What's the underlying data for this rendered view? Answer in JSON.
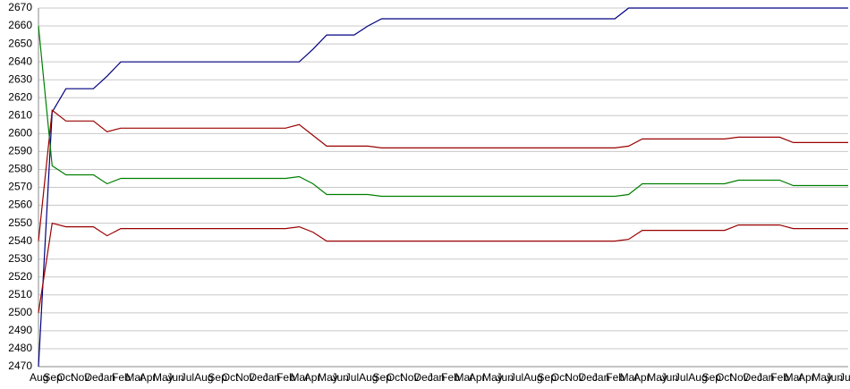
{
  "chart_data": {
    "type": "line",
    "categories": [
      "Aug",
      "Sep",
      "Oct",
      "Nov",
      "Dec",
      "Jan",
      "Feb",
      "Mar",
      "Apr",
      "May",
      "Jun",
      "Jul",
      "Aug",
      "Sep",
      "Oct",
      "Nov",
      "Dec",
      "Jan",
      "Feb",
      "Mar",
      "Apr",
      "May",
      "Jun",
      "Jul",
      "Aug",
      "Sep",
      "Oct",
      "Nov",
      "Dec",
      "Jan",
      "Feb",
      "Mar",
      "Apr",
      "May",
      "Jun",
      "Jul",
      "Aug",
      "Sep",
      "Oct",
      "Nov",
      "Dec",
      "Jan",
      "Feb",
      "Mar",
      "Apr",
      "May",
      "Jun",
      "Jul",
      "Aug",
      "Sep",
      "Oct",
      "Nov",
      "Dec",
      "Jan",
      "Feb",
      "Mar",
      "Apr",
      "May",
      "Jun",
      "Jul"
    ],
    "series": [
      {
        "color": "#000080",
        "values": [
          2470,
          2612,
          2625,
          2625,
          2625,
          2632,
          2640,
          2640,
          2640,
          2640,
          2640,
          2640,
          2640,
          2640,
          2640,
          2640,
          2640,
          2640,
          2640,
          2640,
          2647,
          2655,
          2655,
          2655,
          2660,
          2664,
          2664,
          2664,
          2664,
          2664,
          2664,
          2664,
          2664,
          2664,
          2664,
          2664,
          2664,
          2664,
          2664,
          2664,
          2664,
          2664,
          2664,
          2670,
          2670,
          2670,
          2670,
          2670,
          2670,
          2670,
          2670,
          2670,
          2670,
          2670,
          2670,
          2670,
          2670,
          2670,
          2670,
          2670
        ]
      },
      {
        "color": "#990000",
        "values": [
          2540,
          2613,
          2607,
          2607,
          2607,
          2601,
          2603,
          2603,
          2603,
          2603,
          2603,
          2603,
          2603,
          2603,
          2603,
          2603,
          2603,
          2603,
          2603,
          2605,
          2599,
          2593,
          2593,
          2593,
          2593,
          2592,
          2592,
          2592,
          2592,
          2592,
          2592,
          2592,
          2592,
          2592,
          2592,
          2592,
          2592,
          2592,
          2592,
          2592,
          2592,
          2592,
          2592,
          2593,
          2597,
          2597,
          2597,
          2597,
          2597,
          2597,
          2597,
          2598,
          2598,
          2598,
          2598,
          2595,
          2595,
          2595,
          2595,
          2595
        ]
      },
      {
        "color": "#008000",
        "values": [
          2660,
          2582,
          2577,
          2577,
          2577,
          2572,
          2575,
          2575,
          2575,
          2575,
          2575,
          2575,
          2575,
          2575,
          2575,
          2575,
          2575,
          2575,
          2575,
          2576,
          2572,
          2566,
          2566,
          2566,
          2566,
          2565,
          2565,
          2565,
          2565,
          2565,
          2565,
          2565,
          2565,
          2565,
          2565,
          2565,
          2565,
          2565,
          2565,
          2565,
          2565,
          2565,
          2565,
          2566,
          2572,
          2572,
          2572,
          2572,
          2572,
          2572,
          2572,
          2574,
          2574,
          2574,
          2574,
          2571,
          2571,
          2571,
          2571,
          2571
        ]
      },
      {
        "color": "#990000",
        "values": [
          2500,
          2550,
          2548,
          2548,
          2548,
          2543,
          2547,
          2547,
          2547,
          2547,
          2547,
          2547,
          2547,
          2547,
          2547,
          2547,
          2547,
          2547,
          2547,
          2548,
          2545,
          2540,
          2540,
          2540,
          2540,
          2540,
          2540,
          2540,
          2540,
          2540,
          2540,
          2540,
          2540,
          2540,
          2540,
          2540,
          2540,
          2540,
          2540,
          2540,
          2540,
          2540,
          2540,
          2541,
          2546,
          2546,
          2546,
          2546,
          2546,
          2546,
          2546,
          2549,
          2549,
          2549,
          2549,
          2547,
          2547,
          2547,
          2547,
          2547
        ]
      }
    ],
    "ylim": [
      2470,
      2670
    ],
    "yticks": [
      2470,
      2480,
      2490,
      2500,
      2510,
      2520,
      2530,
      2540,
      2550,
      2560,
      2570,
      2580,
      2590,
      2600,
      2610,
      2620,
      2630,
      2640,
      2650,
      2660,
      2670
    ],
    "grid": true
  }
}
